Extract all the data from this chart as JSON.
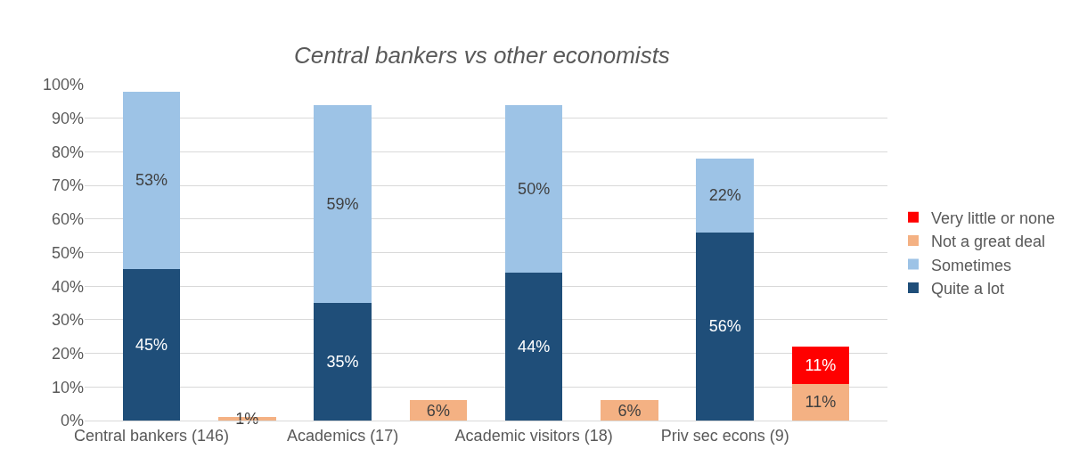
{
  "chart_data": {
    "type": "bar",
    "title": "Central bankers vs other economists",
    "categories": [
      "Central bankers (146)",
      null,
      "Academics (17)",
      null,
      "Academic visitors (18)",
      null,
      "Priv sec econs (9)",
      null
    ],
    "series": [
      {
        "name": "Quite a lot",
        "color": "#1f4e79",
        "values": [
          45,
          null,
          35,
          null,
          44,
          null,
          56,
          null
        ],
        "value_labels": [
          "45%",
          null,
          "35%",
          null,
          "44%",
          null,
          "56%",
          null
        ]
      },
      {
        "name": "Sometimes",
        "color": "#9dc3e6",
        "values": [
          53,
          null,
          59,
          null,
          50,
          null,
          22,
          null
        ],
        "value_labels": [
          "53%",
          null,
          "59%",
          null,
          "50%",
          null,
          "22%",
          null
        ]
      },
      {
        "name": "Not a great deal",
        "color": "#f4b183",
        "values": [
          null,
          1,
          null,
          6,
          null,
          6,
          null,
          11
        ],
        "value_labels": [
          null,
          "1%",
          null,
          "6%",
          null,
          "6%",
          null,
          "11%"
        ]
      },
      {
        "name": "Very little or none",
        "color": "#ff0000",
        "values": [
          null,
          null,
          null,
          null,
          null,
          null,
          null,
          11
        ],
        "value_labels": [
          null,
          null,
          null,
          null,
          null,
          null,
          null,
          "11%"
        ]
      }
    ],
    "stacked": true,
    "ylim": [
      0,
      100
    ],
    "yticks": [
      {
        "value": 0,
        "label": "0%"
      },
      {
        "value": 10,
        "label": "10%"
      },
      {
        "value": 20,
        "label": "20%"
      },
      {
        "value": 30,
        "label": "30%"
      },
      {
        "value": 40,
        "label": "40%"
      },
      {
        "value": 50,
        "label": "50%"
      },
      {
        "value": 60,
        "label": "60%"
      },
      {
        "value": 70,
        "label": "70%"
      },
      {
        "value": 80,
        "label": "80%"
      },
      {
        "value": 90,
        "label": "90%"
      },
      {
        "value": 100,
        "label": "100%"
      }
    ],
    "grid": "y",
    "legend": "right"
  }
}
